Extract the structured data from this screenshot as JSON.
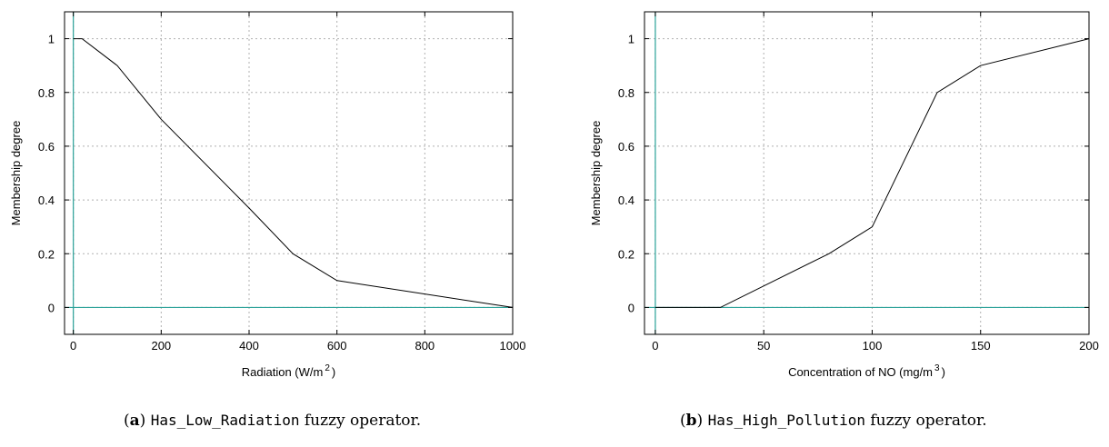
{
  "chart_data": [
    {
      "type": "line",
      "xlabel_main": "Radiation (W/m",
      "xlabel_sup": "2",
      "xlabel_end": ")",
      "ylabel": "Membership degree",
      "xlim": [
        -20,
        1000
      ],
      "ylim": [
        -0.1,
        1.1
      ],
      "xticks": [
        0,
        200,
        400,
        600,
        800,
        1000
      ],
      "yticks": [
        0,
        0.2,
        0.4,
        0.6,
        0.8,
        1
      ],
      "ref_x": 0,
      "ref_y": 0,
      "grid": true,
      "series": [
        {
          "x": [
            0,
            20,
            100,
            200,
            400,
            500,
            600,
            1000
          ],
          "y": [
            1,
            1,
            0.9,
            0.7,
            0.37,
            0.2,
            0.1,
            0
          ]
        }
      ]
    },
    {
      "type": "line",
      "xlabel_main": "Concentration of NO (mg/m",
      "xlabel_sup": "3",
      "xlabel_end": ")",
      "ylabel": "Membership degree",
      "xlim": [
        -5,
        200
      ],
      "ylim": [
        -0.1,
        1.1
      ],
      "xticks": [
        0,
        50,
        100,
        150,
        200
      ],
      "yticks": [
        0,
        0.2,
        0.4,
        0.6,
        0.8,
        1
      ],
      "ref_x": 0,
      "ref_y": 0,
      "grid": true,
      "series": [
        {
          "x": [
            0,
            30,
            80,
            100,
            130,
            150,
            200
          ],
          "y": [
            0,
            0,
            0.2,
            0.3,
            0.8,
            0.9,
            1
          ]
        }
      ]
    }
  ],
  "captions": [
    {
      "letter": "a",
      "operator": "Has_Low_Radiation",
      "rest": " fuzzy operator."
    },
    {
      "letter": "b",
      "operator": "Has_High_Pollution",
      "rest": " fuzzy operator."
    }
  ],
  "colors": {
    "ref_line": "#2aa198",
    "grid": "#b0b0b0",
    "curve": "#000000"
  }
}
